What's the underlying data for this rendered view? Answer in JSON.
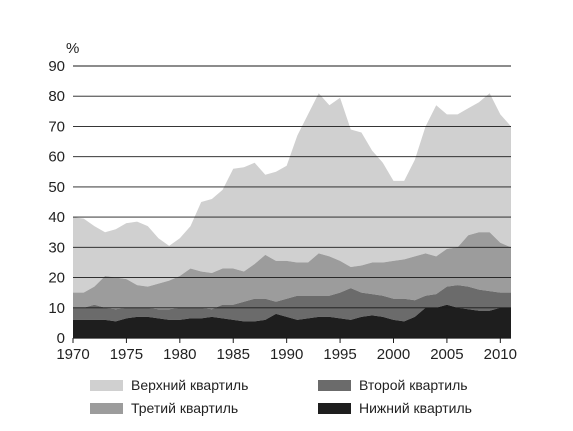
{
  "chart_data": {
    "type": "area",
    "stacked": true,
    "ylabel": "%",
    "ylim": [
      0,
      90
    ],
    "xlim": [
      1970,
      2011
    ],
    "yticks": [
      0,
      10,
      20,
      30,
      40,
      50,
      60,
      70,
      80,
      90
    ],
    "xticks": [
      1970,
      1975,
      1980,
      1985,
      1990,
      1995,
      2000,
      2005,
      2010
    ],
    "grid": true,
    "legend_position": "bottom",
    "x": [
      1970,
      1971,
      1972,
      1973,
      1974,
      1975,
      1976,
      1977,
      1978,
      1979,
      1980,
      1981,
      1982,
      1983,
      1984,
      1985,
      1986,
      1987,
      1988,
      1989,
      1990,
      1991,
      1992,
      1993,
      1994,
      1995,
      1996,
      1997,
      1998,
      1999,
      2000,
      2001,
      2002,
      2003,
      2004,
      2005,
      2006,
      2007,
      2008,
      2009,
      2010,
      2011
    ],
    "series": [
      {
        "name": "Нижний квартиль",
        "color": "#1e1e1e",
        "cumulative": [
          6,
          6,
          6,
          6,
          5.5,
          6.5,
          7,
          7,
          6.5,
          6,
          6,
          6.5,
          6.5,
          7,
          6.5,
          6,
          5.5,
          5.5,
          6,
          8,
          7,
          6,
          6.5,
          7,
          7,
          6.5,
          6,
          7,
          7.5,
          7,
          6,
          5.5,
          7,
          10,
          10,
          11,
          10,
          9.5,
          9,
          9,
          10,
          10
        ]
      },
      {
        "name": "Второй квартиль",
        "color": "#6b6b6b",
        "cumulative": [
          10,
          10,
          11,
          10,
          9.5,
          10,
          10,
          10,
          9.5,
          9.5,
          10,
          10,
          10,
          9.5,
          11,
          11,
          12,
          13,
          13,
          12,
          13,
          14,
          14,
          14,
          14,
          15,
          16.5,
          15,
          14.5,
          14,
          13,
          13,
          12.5,
          14,
          14.5,
          17,
          17.5,
          17,
          16,
          15.5,
          15,
          15
        ]
      },
      {
        "name": "Третий квартиль",
        "color": "#9c9c9c",
        "cumulative": [
          15,
          15,
          17,
          20.5,
          20,
          19.5,
          17.5,
          17,
          18,
          19,
          20.5,
          23,
          22,
          21.5,
          23,
          23,
          22,
          24.5,
          27.5,
          25.5,
          25.5,
          25,
          25,
          28,
          27,
          25.5,
          23.5,
          24,
          25,
          25,
          25.5,
          26,
          27,
          28,
          27,
          29.5,
          30,
          34,
          35,
          35,
          31.5,
          30
        ]
      },
      {
        "name": "Верхний квартиль",
        "color": "#d0d0d0",
        "cumulative": [
          40,
          39.5,
          37,
          35,
          36,
          38,
          38.5,
          37,
          33,
          30.5,
          33,
          37,
          45,
          46,
          49,
          56,
          56.5,
          58,
          54,
          55,
          57,
          67,
          74,
          81,
          77,
          79.5,
          69,
          68,
          62,
          58,
          52,
          52,
          59,
          70,
          77,
          74,
          74,
          76,
          78,
          81,
          74,
          70
        ]
      }
    ],
    "legend": [
      {
        "label": "Верхний квартиль",
        "color": "#d0d0d0"
      },
      {
        "label": "Второй квартиль",
        "color": "#6b6b6b"
      },
      {
        "label": "Третий квартиль",
        "color": "#9c9c9c"
      },
      {
        "label": "Нижний квартиль",
        "color": "#1e1e1e"
      }
    ]
  }
}
